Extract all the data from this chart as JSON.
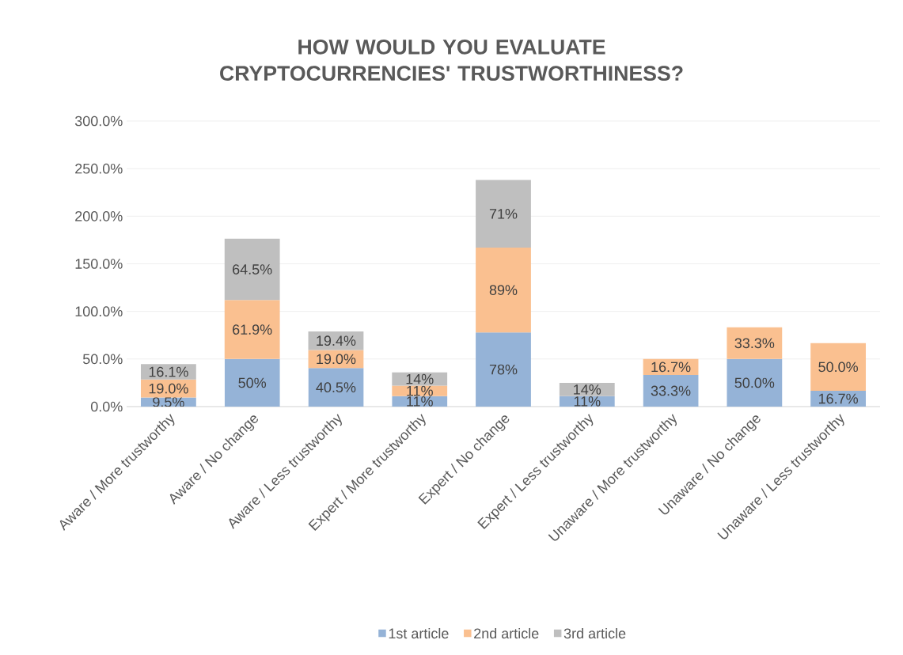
{
  "chart_data": {
    "type": "bar",
    "stacked": true,
    "title": "HOW WOULD YOU EVALUATE CRYPTOCURRENCIES' TRUSTWORTHINESS?",
    "categories": [
      "Aware / More trustworthy",
      "Aware / No change",
      "Aware /  Less trustworthy",
      "Expert / More trustworthy",
      "Expert / No change",
      "Expert /  Less trustworthy",
      "Unaware / More trustworthy",
      "Unaware / No change",
      "Unaware /  Less trustworthy"
    ],
    "series": [
      {
        "name": "1st article",
        "color": "#95b3d7",
        "values": [
          9.5,
          50,
          40.5,
          11,
          78,
          11,
          33.3,
          50.0,
          16.7
        ],
        "value_labels": [
          "9.5%",
          "50%",
          "40.5%",
          "11%",
          "78%",
          "11%",
          "33.3%",
          "50.0%",
          "16.7%"
        ]
      },
      {
        "name": "2nd article",
        "color": "#fac090",
        "values": [
          19.0,
          61.9,
          19.0,
          11,
          89,
          null,
          16.7,
          33.3,
          50.0
        ],
        "value_labels": [
          "19.0%",
          "61.9%",
          "19.0%",
          "11%",
          "89%",
          null,
          "16.7%",
          "33.3%",
          "50.0%"
        ]
      },
      {
        "name": "3rd article",
        "color": "#bfbfbf",
        "values": [
          16.1,
          64.5,
          19.4,
          14,
          71,
          14,
          null,
          null,
          null
        ],
        "value_labels": [
          "16.1%",
          "64.5%",
          "19.4%",
          "14%",
          "71%",
          "14%",
          null,
          null,
          null
        ]
      }
    ],
    "ylim": [
      0,
      300
    ],
    "yticks": [
      {
        "value": 0,
        "label": "0.0%"
      },
      {
        "value": 50,
        "label": "50.0%"
      },
      {
        "value": 100,
        "label": "100.0%"
      },
      {
        "value": 150,
        "label": "150.0%"
      },
      {
        "value": 200,
        "label": "200.0%"
      },
      {
        "value": 250,
        "label": "250.0%"
      },
      {
        "value": 300,
        "label": "300.0%"
      }
    ],
    "grid": "y",
    "legend": "bottom"
  }
}
